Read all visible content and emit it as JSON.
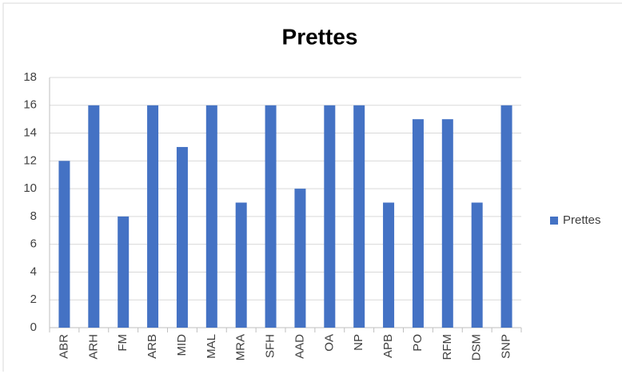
{
  "chart_data": {
    "type": "bar",
    "title": "Prettes",
    "categories": [
      "ABR",
      "ARH",
      "FM",
      "ARB",
      "MID",
      "MAL",
      "MRA",
      "SFH",
      "AAD",
      "OA",
      "NP",
      "APB",
      "PO",
      "RFM",
      "DSM",
      "SNP"
    ],
    "series": [
      {
        "name": "Prettes",
        "color": "#4472c4",
        "values": [
          12,
          16,
          8,
          16,
          13,
          16,
          9,
          16,
          10,
          16,
          16,
          9,
          15,
          15,
          9,
          16
        ]
      }
    ],
    "ylim": [
      0,
      18
    ],
    "yticks": [
      0,
      2,
      4,
      6,
      8,
      10,
      12,
      14,
      16,
      18
    ],
    "grid": true,
    "legend": "right"
  }
}
